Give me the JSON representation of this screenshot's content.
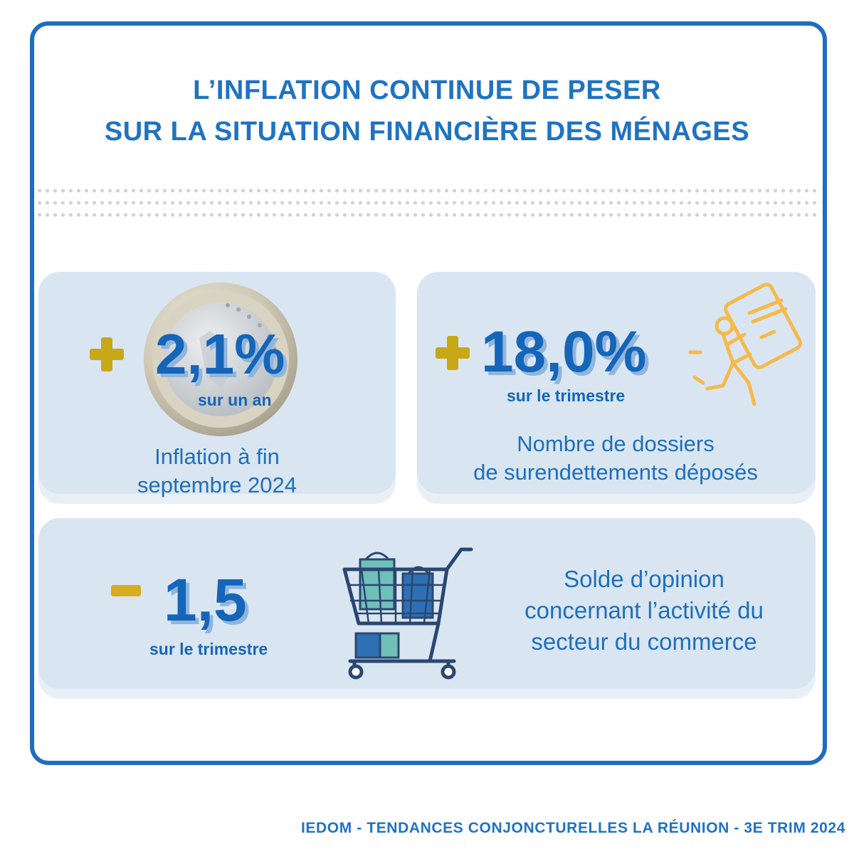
{
  "title": {
    "line1": "L’INFLATION CONTINUE DE PESER",
    "line2": "SUR LA SITUATION FINANCIÈRE DES MÉNAGES"
  },
  "cards": {
    "inflation": {
      "sign": "+",
      "value": "2,1%",
      "period": "sur un an",
      "description_line1": "Inflation à fin",
      "description_line2": "septembre 2024",
      "icon": "euro-coin-icon"
    },
    "overindebtedness": {
      "sign": "+",
      "value": "18,0%",
      "period": "sur le trimestre",
      "description_line1": "Nombre de dossiers",
      "description_line2": "de surendettements déposés",
      "icon": "person-carrying-card-icon"
    },
    "commerce": {
      "sign": "-",
      "value": "1,5",
      "period": "sur le trimestre",
      "description_line1": "Solde d’opinion",
      "description_line2": "concernant l’activité du",
      "description_line3": "secteur du commerce",
      "icon": "shopping-cart-icon"
    }
  },
  "footer": "IEDOM - TENDANCES CONJONCTURELLES LA RÉUNION - 3E TRIM 2024",
  "colors": {
    "primary_blue": "#1f73c2",
    "card_bg": "#d9e6f2",
    "accent_gold": "#c9a818",
    "icon_orange": "#f7b94a"
  }
}
